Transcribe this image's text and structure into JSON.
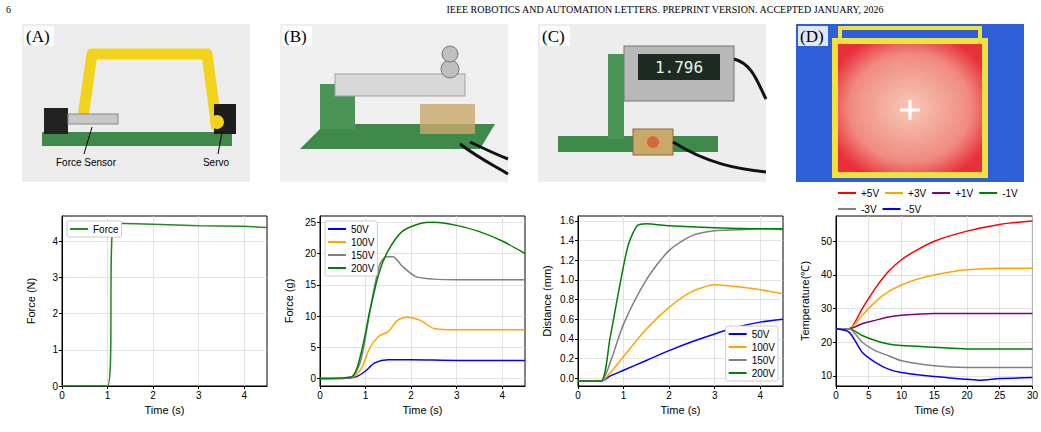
{
  "header": {
    "page": "6",
    "title": "IEEE ROBOTICS AND AUTOMATION LETTERS. PREPRINT VERSION. ACCEPTED JANUARY, 2026"
  },
  "photos": [
    {
      "letter": "(A)",
      "labels": [
        "Force Sensor",
        "Servo"
      ]
    },
    {
      "letter": "(B)",
      "labels": []
    },
    {
      "letter": "(C)",
      "labels": [
        "1.796"
      ]
    },
    {
      "letter": "(D)",
      "labels": []
    }
  ],
  "chart_data": [
    {
      "type": "line",
      "xlabel": "Time (s)",
      "ylabel": "Force (N)",
      "xlim": [
        0,
        4.5
      ],
      "xticks": [
        0,
        1,
        2,
        3,
        4
      ],
      "ylim": [
        0,
        4.7
      ],
      "yticks": [
        0,
        1,
        2,
        3,
        4
      ],
      "grid": true,
      "legend": "upper left",
      "series": [
        {
          "name": "Force",
          "color": "#228b22",
          "x": [
            0,
            1,
            1.15,
            2,
            3,
            4,
            4.5
          ],
          "values": [
            0,
            0,
            4.5,
            4.47,
            4.43,
            4.42,
            4.38
          ]
        }
      ]
    },
    {
      "type": "line",
      "xlabel": "Time (s)",
      "ylabel": "Force (g)",
      "xlim": [
        0,
        4.5
      ],
      "xticks": [
        0,
        1,
        2,
        3,
        4
      ],
      "ylim": [
        -1.2,
        26
      ],
      "yticks": [
        0,
        5,
        10,
        15,
        20,
        25
      ],
      "grid": true,
      "legend": "upper left",
      "series": [
        {
          "name": "50V",
          "color": "#0000ff",
          "x": [
            0,
            0.5,
            0.8,
            1.0,
            1.2,
            1.5,
            2,
            3,
            4,
            4.5
          ],
          "values": [
            0,
            0,
            0.3,
            1.2,
            2.5,
            3.0,
            3.0,
            2.9,
            2.9,
            2.9
          ]
        },
        {
          "name": "100V",
          "color": "#ffa500",
          "x": [
            0,
            0.7,
            0.9,
            1.1,
            1.3,
            1.5,
            1.7,
            1.9,
            2.2,
            2.5,
            3,
            4.5
          ],
          "values": [
            0,
            0.2,
            1.5,
            5,
            6.8,
            7.5,
            9.3,
            9.8,
            9.3,
            8,
            7.8,
            7.8
          ]
        },
        {
          "name": "150V",
          "color": "#808080",
          "x": [
            0,
            0.7,
            0.9,
            1.1,
            1.3,
            1.45,
            1.6,
            1.8,
            2.1,
            2.5,
            3,
            4.5
          ],
          "values": [
            0,
            0.3,
            3,
            11,
            18,
            19.5,
            19.5,
            18,
            16.3,
            15.9,
            15.8,
            15.8
          ]
        },
        {
          "name": "200V",
          "color": "#008000",
          "x": [
            0,
            0.7,
            0.9,
            1.1,
            1.3,
            1.5,
            1.8,
            2.2,
            2.5,
            3,
            3.5,
            4,
            4.5
          ],
          "values": [
            0,
            0.3,
            4,
            11,
            17,
            20.5,
            23.5,
            24.8,
            25,
            24.5,
            23.5,
            22,
            20
          ]
        }
      ]
    },
    {
      "type": "line",
      "xlabel": "Time (s)",
      "ylabel": "Distance (mm)",
      "xlim": [
        0,
        4.5
      ],
      "xticks": [
        0,
        1,
        2,
        3,
        4
      ],
      "ylim": [
        -0.08,
        1.65
      ],
      "yticks": [
        {
          "value": 0,
          "label": "0.0"
        },
        0.2,
        0.4,
        0.6,
        0.8,
        {
          "value": 1,
          "label": "1.0"
        },
        1.2,
        1.4,
        1.6
      ],
      "grid": true,
      "legend": "lower right",
      "series": [
        {
          "name": "50V",
          "color": "#0000ff",
          "x": [
            0,
            0.5,
            0.7,
            1,
            1.5,
            2,
            2.5,
            3,
            3.5,
            4,
            4.5
          ],
          "values": [
            -0.03,
            -0.03,
            0.02,
            0.08,
            0.18,
            0.28,
            0.37,
            0.45,
            0.52,
            0.57,
            0.6
          ]
        },
        {
          "name": "100V",
          "color": "#ffa500",
          "x": [
            0,
            0.5,
            0.7,
            1,
            1.5,
            2,
            2.5,
            3,
            3.5,
            4,
            4.5
          ],
          "values": [
            -0.03,
            -0.03,
            0.05,
            0.22,
            0.5,
            0.72,
            0.88,
            0.95,
            0.93,
            0.9,
            0.86
          ]
        },
        {
          "name": "150V",
          "color": "#808080",
          "x": [
            0,
            0.5,
            0.7,
            1,
            1.5,
            2,
            2.5,
            3,
            3.5,
            4,
            4.5
          ],
          "values": [
            -0.03,
            -0.03,
            0.15,
            0.55,
            1.0,
            1.3,
            1.45,
            1.5,
            1.51,
            1.52,
            1.51
          ]
        },
        {
          "name": "200V",
          "color": "#008000",
          "x": [
            0,
            0.5,
            0.7,
            0.9,
            1.1,
            1.3,
            1.5,
            2,
            3,
            4,
            4.5
          ],
          "values": [
            -0.03,
            -0.03,
            0.4,
            0.9,
            1.35,
            1.55,
            1.57,
            1.55,
            1.53,
            1.52,
            1.52
          ]
        }
      ]
    },
    {
      "type": "line",
      "xlabel": "Time (s)",
      "ylabel": "Temperature(℃)",
      "xlim": [
        0,
        30
      ],
      "xticks": [
        0,
        5,
        10,
        15,
        20,
        25,
        30
      ],
      "ylim": [
        7,
        57.5
      ],
      "yticks": [
        10,
        20,
        30,
        40,
        50
      ],
      "grid": true,
      "legend": "top",
      "series": [
        {
          "name": "+5V",
          "color": "#ff0000",
          "x": [
            0,
            2,
            4,
            6,
            8,
            10,
            12,
            15,
            20,
            25,
            30
          ],
          "values": [
            24,
            24,
            30,
            36,
            41,
            44.5,
            47,
            50,
            53,
            55,
            56
          ]
        },
        {
          "name": "+3V",
          "color": "#ffa500",
          "x": [
            0,
            2,
            4,
            6,
            8,
            10,
            12,
            15,
            20,
            25,
            30
          ],
          "values": [
            24,
            24,
            28,
            32,
            35,
            37,
            38.5,
            40,
            41.5,
            42,
            42
          ]
        },
        {
          "name": "+1V",
          "color": "#800080",
          "x": [
            0,
            2,
            4,
            6,
            8,
            10,
            15,
            20,
            30
          ],
          "values": [
            24,
            24,
            25.5,
            26.5,
            27.5,
            28,
            28.5,
            28.5,
            28.5
          ]
        },
        {
          "name": "-1V",
          "color": "#008000",
          "x": [
            0,
            2,
            4,
            6,
            8,
            10,
            15,
            20,
            30
          ],
          "values": [
            24,
            24,
            22,
            20.5,
            19.5,
            19,
            18.5,
            18,
            18
          ]
        },
        {
          "name": "-3V",
          "color": "#808080",
          "x": [
            0,
            2,
            4,
            6,
            8,
            10,
            15,
            20,
            25,
            30
          ],
          "values": [
            24,
            24,
            20,
            17.5,
            16,
            14.5,
            13,
            12.5,
            12.5,
            12.5
          ]
        },
        {
          "name": "-5V",
          "color": "#0000ff",
          "x": [
            0,
            2,
            4,
            6,
            8,
            10,
            15,
            20,
            22,
            25,
            30
          ],
          "values": [
            24,
            23,
            17,
            14,
            12,
            11,
            9.8,
            9,
            8.7,
            9.2,
            9.5
          ]
        }
      ]
    }
  ]
}
